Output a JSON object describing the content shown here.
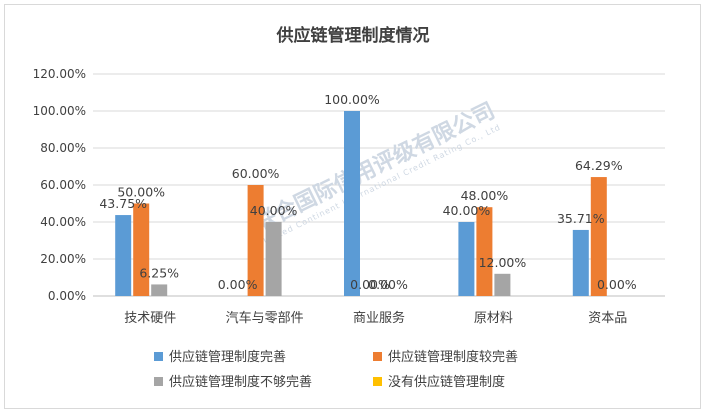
{
  "chart_data": {
    "type": "bar",
    "title": "供应链管理制度情况",
    "categories": [
      "技术硬件",
      "汽车与零部件",
      "商业服务",
      "原材料",
      "资本品"
    ],
    "ylim": [
      0,
      120
    ],
    "yticks": [
      "0.00%",
      "20.00%",
      "40.00%",
      "60.00%",
      "80.00%",
      "100.00%",
      "120.00%"
    ],
    "series": [
      {
        "name": "供应链管理制度完善",
        "color": "#5b9bd5",
        "values": [
          43.75,
          0,
          100,
          40,
          35.71
        ],
        "labels": [
          "43.75%",
          "0.00%",
          "100.00%",
          "40.00%",
          "35.71%"
        ]
      },
      {
        "name": "供应链管理制度较完善",
        "color": "#ed7d31",
        "values": [
          50,
          60,
          0,
          48,
          64.29
        ],
        "labels": [
          "50.00%",
          "60.00%",
          "0.00%",
          "48.00%",
          "64.29%"
        ]
      },
      {
        "name": "供应链管理制度不够完善",
        "color": "#a5a5a5",
        "values": [
          6.25,
          40,
          0,
          12,
          0
        ],
        "labels": [
          "6.25%",
          "40.00%",
          "0.00%",
          "12.00%",
          "0.00%"
        ]
      },
      {
        "name": "没有供应链管理制度",
        "color": "#ffc000",
        "values": [
          0,
          0,
          0,
          0,
          0
        ],
        "labels": [
          null,
          null,
          null,
          null,
          null
        ]
      }
    ],
    "grid": true,
    "legend": "bottom"
  },
  "watermark": {
    "main": "联合国际信用评级有限公司",
    "sub": "United Continent International Credit Rating Co., Ltd"
  }
}
